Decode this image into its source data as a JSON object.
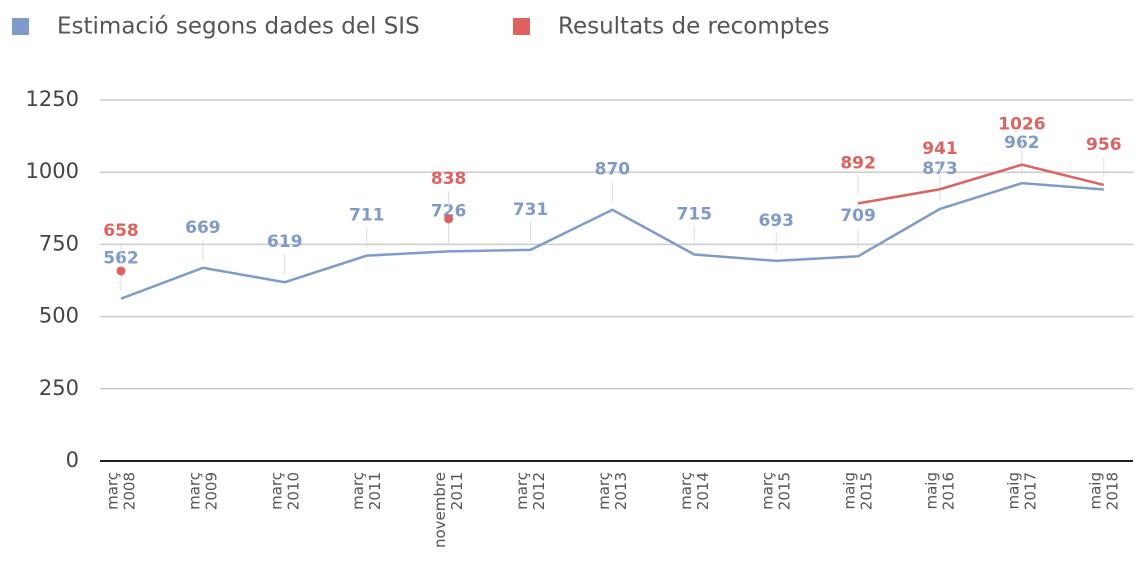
{
  "chart_data": {
    "type": "line",
    "categories": [
      "març 2008",
      "març 2009",
      "març 2010",
      "març 2011",
      "novembre 2011",
      "març 2012",
      "març 2013",
      "març 2014",
      "març 2015",
      "maig 2015",
      "maig 2016",
      "maig 2017",
      "maig 2018"
    ],
    "series": [
      {
        "name": "Estimació segons dades del SIS",
        "color": "#7f9bcb",
        "values": [
          562,
          669,
          619,
          711,
          726,
          731,
          870,
          715,
          693,
          709,
          873,
          962,
          940
        ],
        "value_labels": [
          "562",
          "669",
          "619",
          "711",
          "726",
          "731",
          "870",
          "715",
          "693",
          "709",
          "873",
          "962",
          null
        ]
      },
      {
        "name": "Resultats de recomptes",
        "color": "#e0625f",
        "values": [
          658,
          null,
          null,
          null,
          838,
          null,
          null,
          null,
          null,
          892,
          941,
          1026,
          956
        ]
      }
    ],
    "ylim": [
      0,
      1250
    ],
    "yticks": [
      0,
      250,
      500,
      750,
      1000,
      1250
    ],
    "grid": true,
    "legend": "top-left"
  }
}
